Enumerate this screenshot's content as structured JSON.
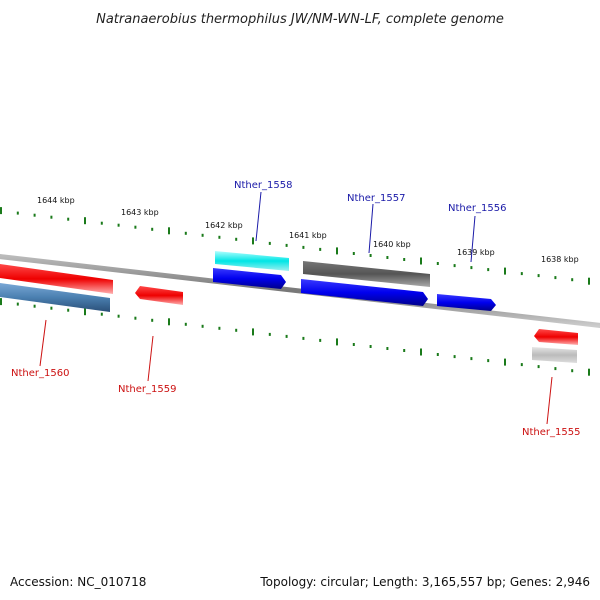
{
  "title": "Natranaerobius thermophilus JW/NM-WN-LF, complete genome",
  "footer": {
    "accession": "Accession: NC_010718",
    "topology": "Topology: circular; Length: 3,165,557 bp; Genes: 2,946"
  },
  "scale_labels": [
    "1644 kbp",
    "1643 kbp",
    "1642 kbp",
    "1641 kbp",
    "1640 kbp",
    "1639 kbp",
    "1638 kbp"
  ],
  "genes_top": [
    {
      "name": "Nther_1558",
      "color": "#1a1aa8"
    },
    {
      "name": "Nther_1557",
      "color": "#1a1aa8"
    },
    {
      "name": "Nther_1556",
      "color": "#1a1aa8"
    }
  ],
  "genes_bottom": [
    {
      "name": "Nther_1560",
      "color": "#cc1111"
    },
    {
      "name": "Nther_1559",
      "color": "#cc1111"
    },
    {
      "name": "Nther_1555",
      "color": "#cc1111"
    }
  ],
  "colors": {
    "forward_gene": "#0000ee",
    "reverse_gene": "#ee0000",
    "tick": "#1a7a1a",
    "backbone": "#888888",
    "cyan_gene": "#00e5e5",
    "dark_gene": "#555555",
    "steel_gene": "#4a7fb0",
    "silver_gene": "#bbbbbb"
  }
}
